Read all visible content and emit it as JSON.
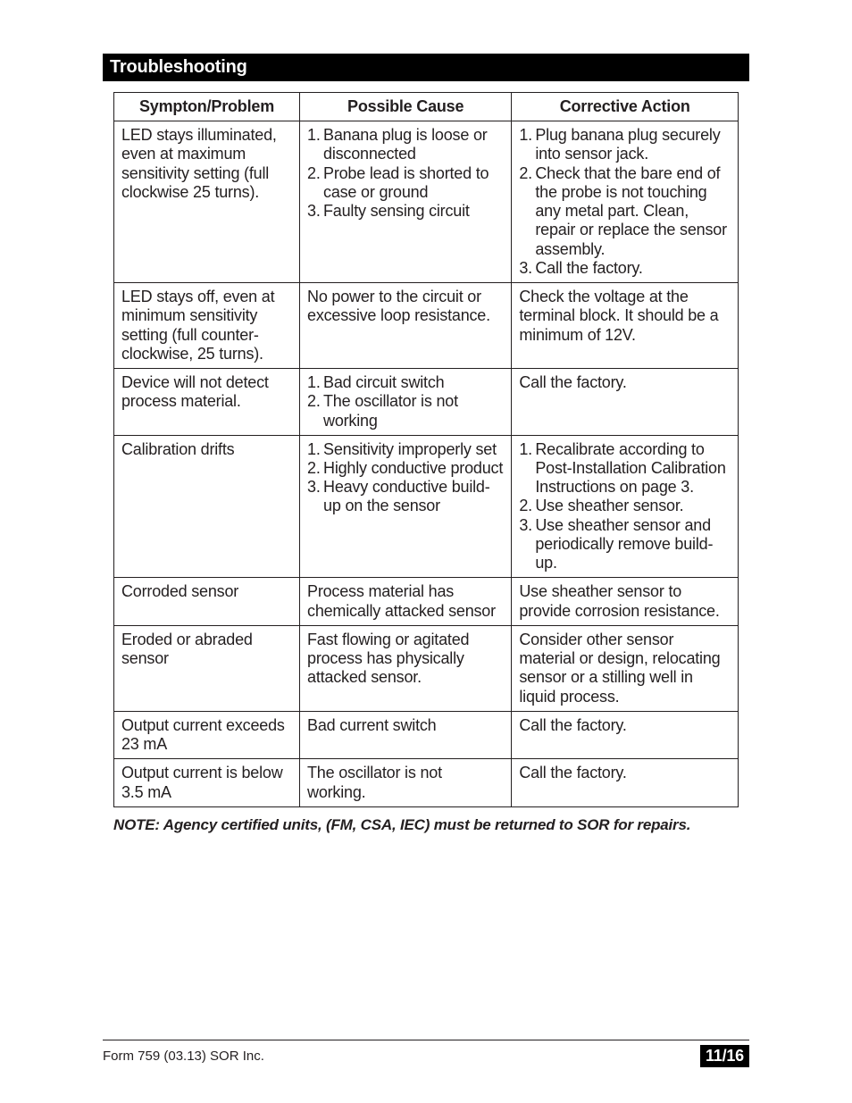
{
  "section_title": "Troubleshooting",
  "table": {
    "columns": [
      "Sympton/Problem",
      "Possible Cause",
      "Corrective Action"
    ],
    "rows": [
      {
        "symptom": "LED stays illuminated, even at maximum sensitivity setting (full clockwise 25 turns).",
        "cause": [
          "Banana plug is loose or disconnected",
          "Probe lead is shorted to case or ground",
          "Faulty sensing circuit"
        ],
        "action": [
          "Plug banana plug securely into sensor jack.",
          "Check that the bare end of the probe is not touching any metal part. Clean, repair or replace the sensor assembly.",
          "Call the factory."
        ]
      },
      {
        "symptom": "LED stays off, even at minimum sensitivity setting (full counter-clockwise, 25 turns).",
        "cause": "No power to the circuit or excessive loop resistance.",
        "action": "Check the voltage at the terminal block. It should be a minimum of 12V."
      },
      {
        "symptom": "Device will not detect process material.",
        "cause": [
          "Bad circuit switch",
          "The oscillator is not working"
        ],
        "action": "Call the factory."
      },
      {
        "symptom": "Calibration drifts",
        "cause": [
          "Sensitivity improperly set",
          "Highly conductive product",
          "Heavy conductive build-up on the sensor"
        ],
        "action": [
          "Recalibrate according to Post-Installation Calibration Instructions on page 3.",
          "Use sheather sensor.",
          "Use sheather sensor and periodically remove build-up."
        ]
      },
      {
        "symptom": "Corroded sensor",
        "cause": "Process material has chemically attacked sensor",
        "action": "Use sheather sensor to provide corrosion resistance."
      },
      {
        "symptom": "Eroded or abraded sensor",
        "cause": "Fast flowing or agitated process has physically attacked sensor.",
        "action": "Consider other sensor material or design, relocating sensor or a stilling well in liquid process."
      },
      {
        "symptom": "Output current exceeds 23 mA",
        "cause": "Bad current switch",
        "action": "Call the factory."
      },
      {
        "symptom": "Output current is below 3.5 mA",
        "cause": "The oscillator is not working.",
        "action": "Call the factory."
      }
    ]
  },
  "note": "NOTE: Agency certified units, (FM, CSA, IEC) must be returned to SOR for repairs.",
  "footer": {
    "form_id": "Form 759 (03.13) SOR Inc.",
    "page": "11/16"
  },
  "style": {
    "page_bg": "#ffffff",
    "text_color": "#231f20",
    "header_bg": "#000000",
    "header_fg": "#ffffff",
    "border_color": "#231f20",
    "body_fontsize": 18,
    "header_fontsize": 20,
    "note_fontsize": 17,
    "footer_fontsize": 15,
    "badge_bg": "#000000",
    "badge_fg": "#ffffff"
  }
}
